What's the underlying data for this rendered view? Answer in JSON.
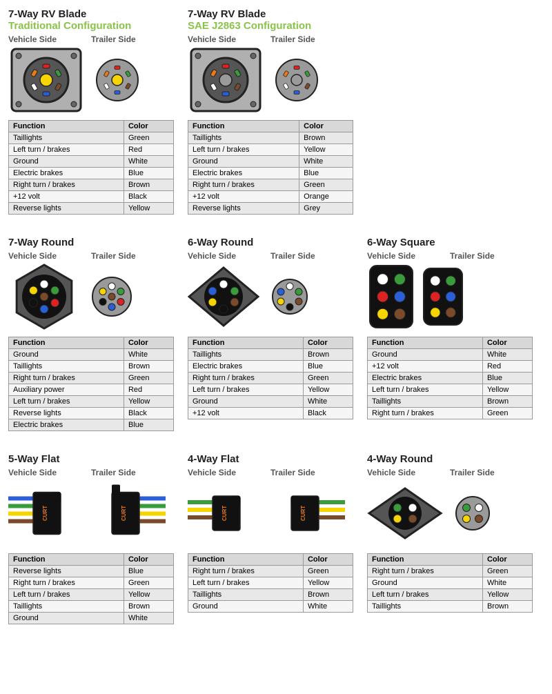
{
  "labels": {
    "vehicle": "Vehicle Side",
    "trailer": "Trailer Side",
    "function": "Function",
    "color": "Color"
  },
  "colors": {
    "green": "#3a9b3a",
    "red": "#d22",
    "white": "#fff",
    "blue": "#2a5fd8",
    "brown": "#7a4a2a",
    "black": "#111",
    "yellow": "#f5d400",
    "orange": "#e87a1a",
    "grey": "#9a9a9a",
    "bodyGrey": "#9a9a9a",
    "darkGrey": "#555",
    "plateGrey": "#b0b0b0",
    "stroke": "#222",
    "accent": "#8bc34a"
  },
  "sections": [
    {
      "id": "blade-trad",
      "title": "7-Way RV Blade",
      "subtitle": "Traditional Configuration",
      "type": "blade",
      "centerV": "#f5d400",
      "centerT": "#f5d400",
      "rows": [
        [
          "Taillights",
          "Green"
        ],
        [
          "Left turn / brakes",
          "Red"
        ],
        [
          "Ground",
          "White"
        ],
        [
          "Electric brakes",
          "Blue"
        ],
        [
          "Right turn / brakes",
          "Brown"
        ],
        [
          "+12 volt",
          "Black"
        ],
        [
          "Reverse lights",
          "Yellow"
        ]
      ]
    },
    {
      "id": "blade-sae",
      "title": "7-Way RV Blade",
      "subtitle": "SAE J2863 Configuration",
      "type": "blade",
      "centerV": "#9a9a9a",
      "centerT": "#9a9a9a",
      "rows": [
        [
          "Taillights",
          "Brown"
        ],
        [
          "Left turn / brakes",
          "Yellow"
        ],
        [
          "Ground",
          "White"
        ],
        [
          "Electric brakes",
          "Blue"
        ],
        [
          "Right turn / brakes",
          "Green"
        ],
        [
          "+12 volt",
          "Orange"
        ],
        [
          "Reverse lights",
          "Grey"
        ]
      ]
    },
    {
      "id": "break1",
      "break": true
    },
    {
      "id": "7round",
      "title": "7-Way Round",
      "type": "round7",
      "rows": [
        [
          "Ground",
          "White"
        ],
        [
          "Taillights",
          "Brown"
        ],
        [
          "Right turn / brakes",
          "Green"
        ],
        [
          "Auxiliary power",
          "Red"
        ],
        [
          "Left turn / brakes",
          "Yellow"
        ],
        [
          "Reverse lights",
          "Black"
        ],
        [
          "Electric brakes",
          "Blue"
        ]
      ]
    },
    {
      "id": "6round",
      "title": "6-Way Round",
      "type": "round6",
      "rows": [
        [
          "Taillights",
          "Brown"
        ],
        [
          "Electric brakes",
          "Blue"
        ],
        [
          "Right turn / brakes",
          "Green"
        ],
        [
          "Left turn / brakes",
          "Yellow"
        ],
        [
          "Ground",
          "White"
        ],
        [
          "+12 volt",
          "Black"
        ]
      ]
    },
    {
      "id": "6square",
      "title": "6-Way Square",
      "type": "square6",
      "rows": [
        [
          "Ground",
          "White"
        ],
        [
          "+12 volt",
          "Red"
        ],
        [
          "Electric brakes",
          "Blue"
        ],
        [
          "Left turn / brakes",
          "Yellow"
        ],
        [
          "Taillights",
          "Brown"
        ],
        [
          "Right turn / brakes",
          "Green"
        ]
      ]
    },
    {
      "id": "break2",
      "break": true
    },
    {
      "id": "5flat",
      "title": "5-Way Flat",
      "type": "flat",
      "pins": 5,
      "wires": [
        "#2a5fd8",
        "#3a9b3a",
        "#f5d400",
        "#7a4a2a",
        "#fff"
      ],
      "rows": [
        [
          "Reverse lights",
          "Blue"
        ],
        [
          "Right turn / brakes",
          "Green"
        ],
        [
          "Left turn / brakes",
          "Yellow"
        ],
        [
          "Taillights",
          "Brown"
        ],
        [
          "Ground",
          "White"
        ]
      ]
    },
    {
      "id": "4flat",
      "title": "4-Way Flat",
      "type": "flat",
      "pins": 4,
      "wires": [
        "#3a9b3a",
        "#f5d400",
        "#7a4a2a",
        "#fff"
      ],
      "rows": [
        [
          "Right turn / brakes",
          "Green"
        ],
        [
          "Left turn / brakes",
          "Yellow"
        ],
        [
          "Taillights",
          "Brown"
        ],
        [
          "Ground",
          "White"
        ]
      ]
    },
    {
      "id": "4round",
      "title": "4-Way Round",
      "type": "round4",
      "rows": [
        [
          "Right turn / brakes",
          "Green"
        ],
        [
          "Ground",
          "White"
        ],
        [
          "Left turn / brakes",
          "Yellow"
        ],
        [
          "Taillights",
          "Brown"
        ]
      ]
    }
  ]
}
